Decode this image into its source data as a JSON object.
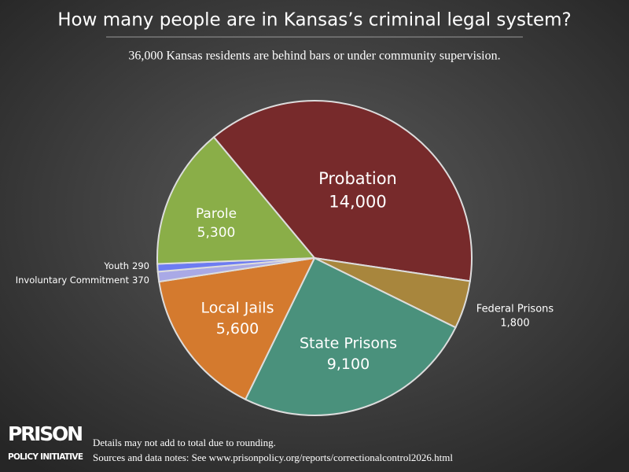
{
  "chart_data": {
    "type": "pie",
    "title": "How many people are in Kansas’s criminal legal system?",
    "subtitle": "36,000 Kansas residents are behind bars or under community supervision.",
    "categories": [
      "Probation",
      "Federal Prisons",
      "State Prisons",
      "Local Jails",
      "Involuntary Commitment",
      "Youth",
      "Parole"
    ],
    "values": [
      14000,
      1800,
      9100,
      5600,
      370,
      290,
      5300
    ],
    "value_labels": [
      "14,000",
      "1,800",
      "9,100",
      "5,600",
      "370",
      "290",
      "5,300"
    ],
    "colors": [
      "#772a2b",
      "#a8863d",
      "#4a917c",
      "#d47a2e",
      "#a9a9e6",
      "#6d7cf2",
      "#8aae48"
    ]
  },
  "footer": {
    "logo_top": "PRISON",
    "logo_bottom": "POLICY INITIATIVE",
    "note": "Details may not add to total due to rounding.",
    "sources": "Sources and data notes: See www.prisonpolicy.org/reports/correctionalcontrol2026.html"
  }
}
